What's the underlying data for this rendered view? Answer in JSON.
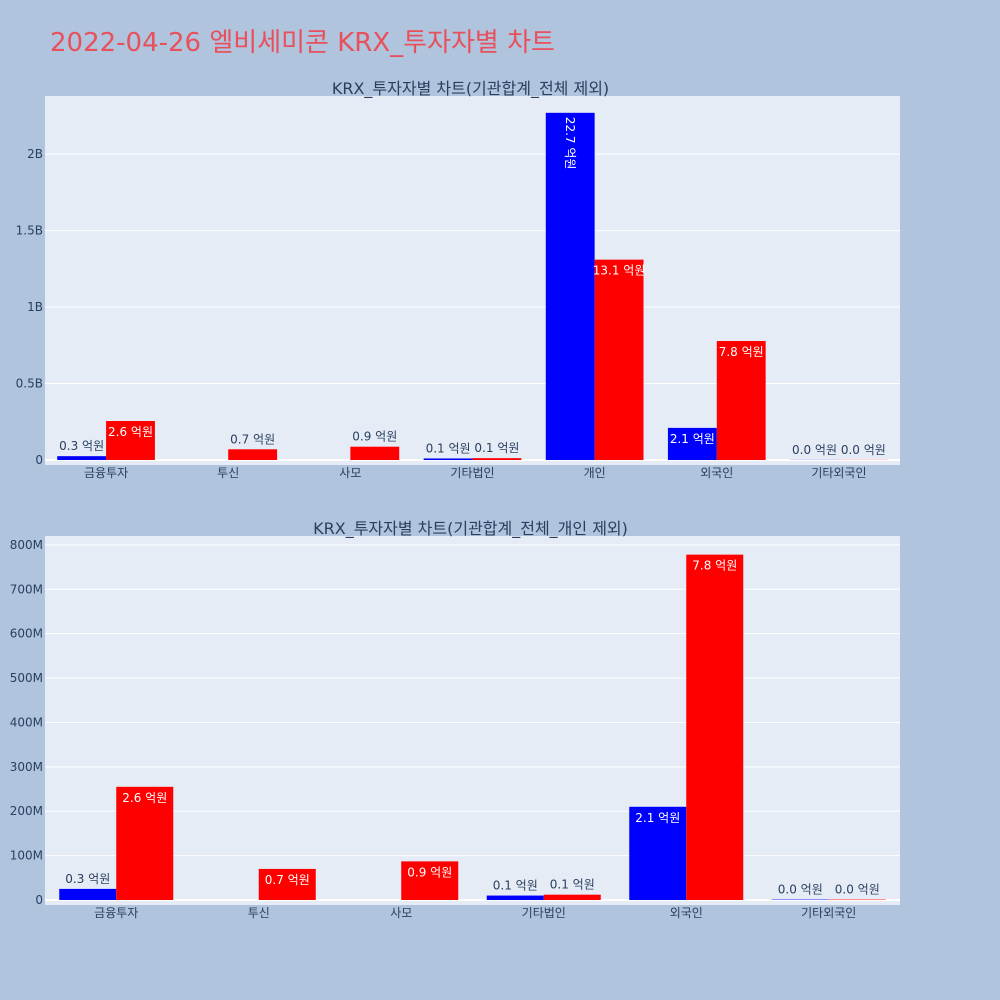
{
  "page_title": "2022-04-26 엘비세미콘 KRX_투자자별 차트",
  "colors": {
    "buy": "#0000ff",
    "sell": "#ff0000",
    "plot_bg": "#e5ecf6",
    "page_bg": "#b0c4de",
    "title": "#e8505b"
  },
  "chart_data": [
    {
      "type": "bar",
      "title": "KRX_투자자별 차트(기관합계_전체 제외)",
      "categories": [
        "금융투자",
        "투신",
        "사모",
        "기타법인",
        "개인",
        "외국인",
        "기타외국인"
      ],
      "series": [
        {
          "color": "#0000ff",
          "values": [
            25000000,
            0,
            0,
            10000000,
            2270000000,
            210000000,
            1000000
          ],
          "labels": [
            "0.3 억원",
            "",
            "",
            "0.1 억원",
            "22.7 억원",
            "2.1 억원",
            "0.0 억원"
          ]
        },
        {
          "color": "#ff0000",
          "values": [
            255000000,
            70000000,
            87000000,
            12000000,
            1310000000,
            778000000,
            1000000
          ],
          "labels": [
            "2.6 억원",
            "0.7 억원",
            "0.9 억원",
            "0.1 억원",
            "13.1 억원",
            "7.8 억원",
            "0.0 억원"
          ]
        }
      ],
      "ylim": [
        0,
        2380000000
      ],
      "yticks": [
        0,
        500000000,
        1000000000,
        1500000000,
        2000000000
      ],
      "ytick_labels": [
        "0",
        "0.5B",
        "1B",
        "1.5B",
        "2B"
      ],
      "grid": true
    },
    {
      "type": "bar",
      "title": "KRX_투자자별 차트(기관합계_전체_개인 제외)",
      "categories": [
        "금융투자",
        "투신",
        "사모",
        "기타법인",
        "외국인",
        "기타외국인"
      ],
      "series": [
        {
          "color": "#0000ff",
          "values": [
            25000000,
            0,
            0,
            10000000,
            210000000,
            1000000
          ],
          "labels": [
            "0.3 억원",
            "",
            "",
            "0.1 억원",
            "2.1 억원",
            "0.0 억원"
          ]
        },
        {
          "color": "#ff0000",
          "values": [
            255000000,
            70000000,
            87000000,
            12000000,
            778000000,
            1000000
          ],
          "labels": [
            "2.6 억원",
            "0.7 억원",
            "0.9 억원",
            "0.1 억원",
            "7.8 억원",
            "0.0 억원"
          ]
        }
      ],
      "ylim": [
        0,
        820000000
      ],
      "yticks": [
        0,
        100000000,
        200000000,
        300000000,
        400000000,
        500000000,
        600000000,
        700000000,
        800000000
      ],
      "ytick_labels": [
        "0",
        "100M",
        "200M",
        "300M",
        "400M",
        "500M",
        "600M",
        "700M",
        "800M"
      ],
      "grid": true
    }
  ]
}
